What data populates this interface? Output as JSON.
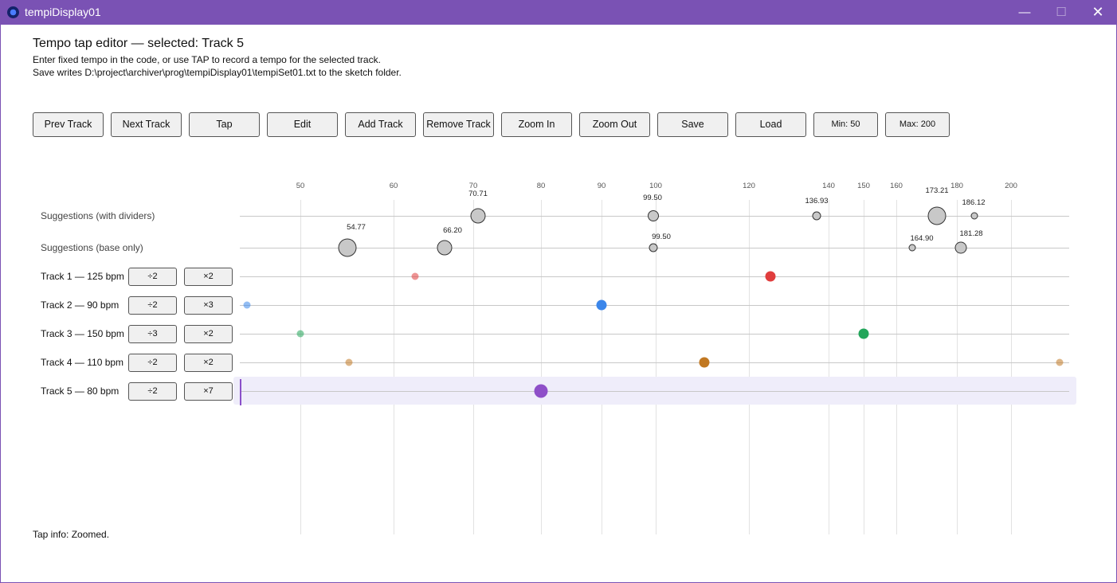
{
  "window": {
    "title": "tempiDisplay01",
    "minimize_glyph": "—",
    "maximize_glyph": "☐",
    "close_glyph": "✕"
  },
  "header": {
    "title": "Tempo tap editor — selected: Track 5",
    "line1": "Enter fixed tempo in the code, or use TAP to record a tempo for the selected track.",
    "line2": "Save writes D:\\project\\archiver\\prog\\tempiDisplay01\\tempiSet01.txt to the sketch folder."
  },
  "toolbar": {
    "prev": "Prev Track",
    "next": "Next Track",
    "tap": "Tap",
    "edit": "Edit",
    "add": "Add Track",
    "remove": "Remove Track",
    "zoom_in": "Zoom In",
    "zoom_out": "Zoom Out",
    "save": "Save",
    "load": "Load",
    "min": "Min: 50",
    "max": "Max: 200"
  },
  "axis_ticks": [
    "50",
    "60",
    "70",
    "80",
    "90",
    "100",
    "120",
    "140",
    "150",
    "160",
    "180",
    "200"
  ],
  "rows": {
    "sugg_div": "Suggestions (with dividers)",
    "sugg_base": "Suggestions (base only)"
  },
  "suggestions_with_dividers": [
    "70.71",
    "99.50",
    "136.93",
    "173.21",
    "186.12"
  ],
  "suggestions_base_only": [
    "54.77",
    "66.20",
    "99.50",
    "164.90",
    "181.28"
  ],
  "tracks": [
    {
      "label": "Track 1 — 125 bpm",
      "b1": "÷2",
      "b2": "×2",
      "color": "#e03d3d"
    },
    {
      "label": "Track 2 — 90 bpm",
      "b1": "÷2",
      "b2": "×3",
      "color": "#3b86ea"
    },
    {
      "label": "Track 3 — 150 bpm",
      "b1": "÷3",
      "b2": "×2",
      "color": "#22a55a"
    },
    {
      "label": "Track 4 — 110 bpm",
      "b1": "÷2",
      "b2": "×2",
      "color": "#c17822"
    },
    {
      "label": "Track 5 — 80 bpm",
      "b1": "÷2",
      "b2": "×7",
      "color": "#8e4fc8"
    }
  ],
  "status": "Tap info: Zoomed."
}
